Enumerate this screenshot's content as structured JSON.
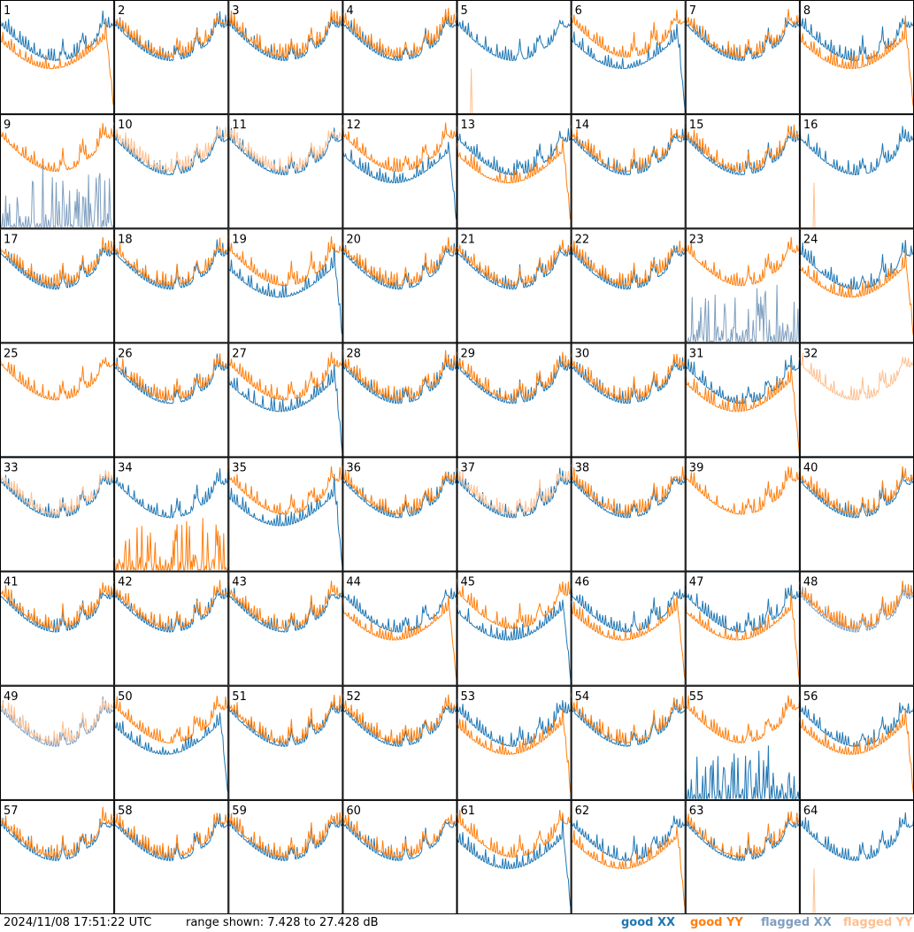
{
  "footer": {
    "timestamp": "2024/11/08 17:51:22 UTC",
    "range": "range shown: 7.428 to 27.428 dB"
  },
  "legend": [
    {
      "label": "good XX",
      "color": "#1f77b4"
    },
    {
      "label": "good YY",
      "color": "#ff7f0e"
    },
    {
      "label": "flagged XX",
      "color": "#7f9fbf"
    },
    {
      "label": "flagged YY",
      "color": "#ffbf8f"
    }
  ],
  "chart_data": {
    "type": "line",
    "grid": {
      "rows": 8,
      "cols": 8
    },
    "y_range_db": [
      7.428,
      27.428
    ],
    "panel_labels": [
      "1",
      "2",
      "3",
      "4",
      "5",
      "6",
      "7",
      "8",
      "9",
      "10",
      "11",
      "12",
      "13",
      "14",
      "15",
      "16",
      "17",
      "18",
      "19",
      "20",
      "21",
      "22",
      "23",
      "24",
      "25",
      "26",
      "27",
      "28",
      "29",
      "30",
      "31",
      "32",
      "33",
      "34",
      "35",
      "36",
      "37",
      "38",
      "39",
      "40",
      "41",
      "42",
      "43",
      "44",
      "45",
      "46",
      "47",
      "48",
      "49",
      "50",
      "51",
      "52",
      "53",
      "54",
      "55",
      "56",
      "57",
      "58",
      "59",
      "60",
      "61",
      "62",
      "63",
      "64"
    ],
    "panel_traces": {
      "1": {
        "xx": "normal",
        "yy": "dip"
      },
      "5": {
        "xx": "normal",
        "yy": "flat-flagged"
      },
      "6": {
        "xx": "dip",
        "yy": "normal"
      },
      "8": {
        "xx": "normal",
        "yy": "dip"
      },
      "9": {
        "xx": "spiky-flagged",
        "yy": "normal"
      },
      "10": {
        "xx": "normal",
        "yy": "flagged"
      },
      "11": {
        "xx": "normal",
        "yy": "flagged"
      },
      "12": {
        "xx": "dip",
        "yy": "normal"
      },
      "13": {
        "xx": "normal",
        "yy": "dip"
      },
      "16": {
        "xx": "normal",
        "yy": "flat-flagged"
      },
      "19": {
        "xx": "dip",
        "yy": "normal"
      },
      "23": {
        "xx": "spiky-flagged",
        "yy": "normal"
      },
      "24": {
        "xx": "normal",
        "yy": "dip"
      },
      "25": {
        "xx": "flat",
        "yy": "normal"
      },
      "27": {
        "xx": "dip",
        "yy": "normal"
      },
      "31": {
        "xx": "normal",
        "yy": "dip"
      },
      "32": {
        "xx": "flat",
        "yy": "flagged"
      },
      "33": {
        "xx": "normal",
        "yy": "flagged"
      },
      "34": {
        "xx": "normal",
        "yy": "spiky"
      },
      "35": {
        "xx": "dip",
        "yy": "normal"
      },
      "37": {
        "xx": "normal",
        "yy": "flagged"
      },
      "39": {
        "xx": "flat",
        "yy": "normal"
      },
      "44": {
        "xx": "normal",
        "yy": "dip"
      },
      "45": {
        "xx": "dip",
        "yy": "normal"
      },
      "46": {
        "xx": "normal",
        "yy": "dip"
      },
      "47": {
        "xx": "normal",
        "yy": "dip"
      },
      "48": {
        "xx": "flagged",
        "yy": "normal"
      },
      "49": {
        "xx": "flagged",
        "yy": "flagged"
      },
      "50": {
        "xx": "dip",
        "yy": "normal"
      },
      "53": {
        "xx": "normal",
        "yy": "dip"
      },
      "55": {
        "xx": "spiky",
        "yy": "normal"
      },
      "56": {
        "xx": "normal",
        "yy": "dip"
      },
      "61": {
        "xx": "dip",
        "yy": "normal"
      },
      "62": {
        "xx": "normal",
        "yy": "dip"
      },
      "64": {
        "xx": "normal",
        "yy": "flat-flagged"
      }
    }
  }
}
